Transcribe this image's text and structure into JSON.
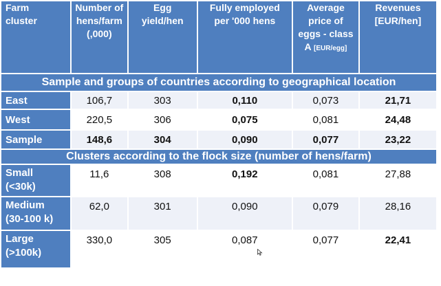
{
  "header": {
    "col0": [
      "Farm",
      "cluster"
    ],
    "col1": [
      "Number of",
      "hens/farm",
      "(,000)"
    ],
    "col2": [
      "Egg",
      "yield/hen"
    ],
    "col3": [
      "Fully employed",
      "per '000 hens"
    ],
    "col4_lines": [
      "Average",
      "price of",
      "eggs - class"
    ],
    "col4_last": "A",
    "col4_small": "[EUR/egg]",
    "col5": [
      "Revenues",
      "[EUR/hen]"
    ]
  },
  "group1": "Sample and groups of countries according to geographical location",
  "group2": "Clusters according to the flock size (number of hens/farm)",
  "rows": [
    {
      "label": [
        "East"
      ],
      "hens": "106,7",
      "yield": "303",
      "employed": "0,110",
      "price": "0,073",
      "revenues": "21,71"
    },
    {
      "label": [
        "West"
      ],
      "hens": "220,5",
      "yield": "306",
      "employed": "0,075",
      "price": "0,081",
      "revenues": "24,48"
    },
    {
      "label": [
        "Sample"
      ],
      "hens": "148,6",
      "yield": "304",
      "employed": "0,090",
      "price": "0,077",
      "revenues": "23,22"
    },
    {
      "label": [
        "Small",
        "(<30k)"
      ],
      "hens": "11,6",
      "yield": "308",
      "employed": "0,192",
      "price": "0,081",
      "revenues": "27,88"
    },
    {
      "label": [
        "Medium",
        "(30-100 k)"
      ],
      "hens": "62,0",
      "yield": "301",
      "employed": "0,090",
      "price": "0,079",
      "revenues": "28,16"
    },
    {
      "label": [
        "Large",
        "(>100k)"
      ],
      "hens": "330,0",
      "yield": "305",
      "employed": "0,087",
      "price": "0,077",
      "revenues": "22,41"
    }
  ],
  "colors": {
    "header_bg": "#4f7fbf",
    "row_bg": "#eef1f8",
    "highlight_red": "#d22020",
    "highlight_dark_red": "#b01515",
    "highlight_blue": "#1a33d6"
  },
  "icons": {
    "cursor": "mouse-pointer-icon"
  }
}
